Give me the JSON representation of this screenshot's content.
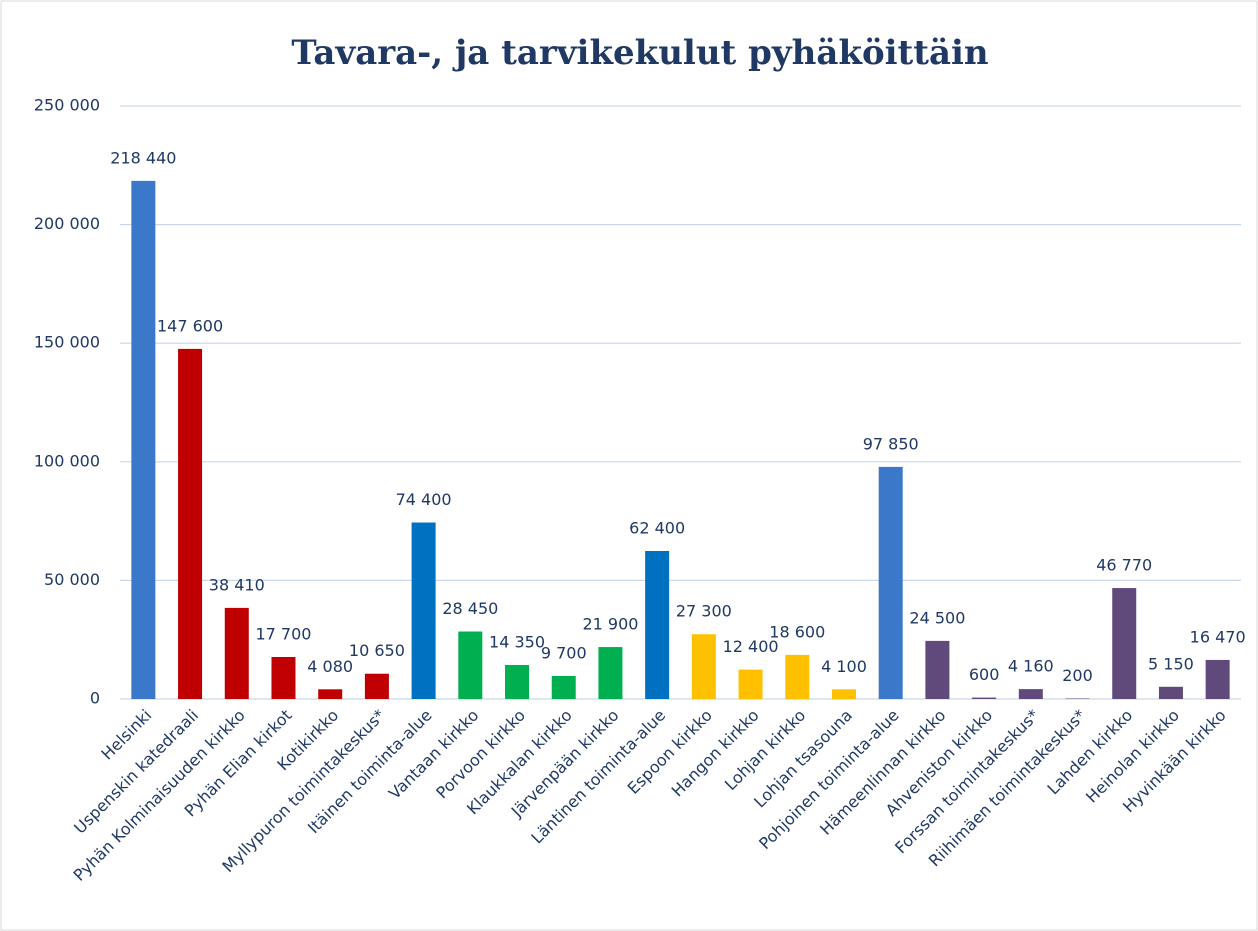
{
  "chart_data": {
    "type": "bar",
    "title": "Tavara-, ja tarvikekulut pyhäköittäin",
    "categories": [
      "Helsinki",
      "Uspenskin katedraali",
      "Pyhän Kolminaisuuden kirkko",
      "Pyhän Elian kirkot",
      "Kotikirkko",
      "Myllypuron toimintakeskus*",
      "Itäinen toiminta-alue",
      "Vantaan kirkko",
      "Porvoon kirkko",
      "Klaukkalan kirkko",
      "Järvenpään kirkko",
      "Läntinen toiminta-alue",
      "Espoon kirkko",
      "Hangon kirkko",
      "Lohjan kirkko",
      "Lohjan tsasouna",
      "Pohjoinen toiminta-alue",
      "Hämeenlinnan kirkko",
      "Ahveniston kirkko",
      "Forssan toimintakeskus*",
      "Riihimäen toimintakeskus*",
      "Lahden kirkko",
      "Heinolan kirkko",
      "Hyvinkään kirkko"
    ],
    "values": [
      218440,
      147600,
      38410,
      17700,
      4080,
      10650,
      74400,
      28450,
      14350,
      9700,
      21900,
      62400,
      27300,
      12400,
      18600,
      4100,
      97850,
      24500,
      600,
      4160,
      200,
      46770,
      5150,
      16470
    ],
    "value_labels": [
      "218 440",
      "147 600",
      "38 410",
      "17 700",
      "4 080",
      "10 650",
      "74 400",
      "28 450",
      "14 350",
      "9 700",
      "21 900",
      "62 400",
      "27 300",
      "12 400",
      "18 600",
      "4 100",
      "97 850",
      "24 500",
      "600",
      "4 160",
      "200",
      "46 770",
      "5 150",
      "16 470"
    ],
    "colors": [
      "#3b78c9",
      "#c00000",
      "#c00000",
      "#c00000",
      "#c00000",
      "#c00000",
      "#0070c0",
      "#00b050",
      "#00b050",
      "#00b050",
      "#00b050",
      "#0070c0",
      "#ffc000",
      "#ffc000",
      "#ffc000",
      "#ffc000",
      "#3b78c9",
      "#604a7b",
      "#604a7b",
      "#604a7b",
      "#604a7b",
      "#604a7b",
      "#604a7b",
      "#604a7b"
    ],
    "ylim": [
      0,
      250000
    ],
    "yticks": [
      0,
      {
        "value": 50000,
        "label": "50 000"
      },
      {
        "value": 100000,
        "label": "100 000"
      },
      {
        "value": 150000,
        "label": "150 000"
      },
      {
        "value": 200000,
        "label": "200 000"
      },
      {
        "value": 250000,
        "label": "250 000"
      }
    ],
    "grid": true
  }
}
